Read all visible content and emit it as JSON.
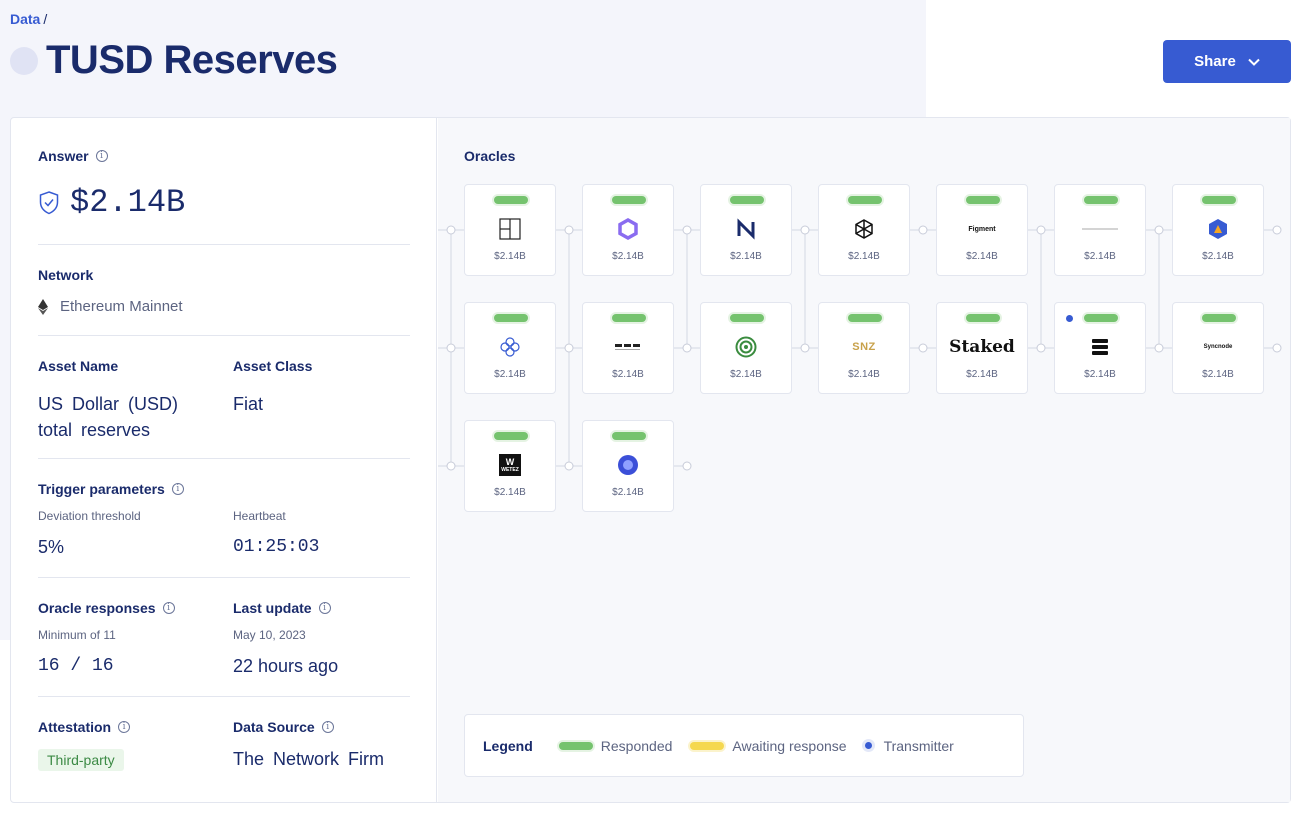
{
  "breadcrumb": {
    "link": "Data",
    "separator": "/"
  },
  "title": "TUSD Reserves",
  "share_label": "Share",
  "answer": {
    "label": "Answer",
    "value": "$2.14B"
  },
  "network": {
    "label": "Network",
    "value": "Ethereum Mainnet"
  },
  "asset": {
    "name_label": "Asset Name",
    "name_value": "US Dollar (USD) total reserves",
    "class_label": "Asset Class",
    "class_value": "Fiat"
  },
  "trigger": {
    "label": "Trigger parameters",
    "deviation_label": "Deviation threshold",
    "deviation_value": "5%",
    "heartbeat_label": "Heartbeat",
    "heartbeat_value": "01:25:03"
  },
  "responses": {
    "label": "Oracle responses",
    "sub": "Minimum of 11",
    "value": "16 / 16",
    "update_label": "Last update",
    "update_sub": "May 10, 2023",
    "update_value": "22 hours ago"
  },
  "attestation": {
    "label": "Attestation",
    "value": "Third-party",
    "source_label": "Data Source",
    "source_value": "The Network Firm"
  },
  "oracles": {
    "title": "Oracles",
    "nodes": [
      {
        "logo": "grid-logo-icon",
        "amount": "$2.14B",
        "status": "responded",
        "transmitter": false
      },
      {
        "logo": "hexagon-gradient-logo-icon",
        "amount": "$2.14B",
        "status": "responded",
        "transmitter": false
      },
      {
        "logo": "n-stripes-logo-icon",
        "amount": "$2.14B",
        "status": "responded",
        "transmitter": false
      },
      {
        "logo": "geometric-hexagon-logo-icon",
        "amount": "$2.14B",
        "status": "responded",
        "transmitter": false,
        "logo_text": ""
      },
      {
        "logo": "figment-logo",
        "amount": "$2.14B",
        "status": "responded",
        "transmitter": false,
        "logo_text": "Figment"
      },
      {
        "logo": "thin-line-logo-icon",
        "amount": "$2.14B",
        "status": "responded",
        "transmitter": false
      },
      {
        "logo": "blue-hexagon-logo-icon",
        "amount": "$2.14B",
        "status": "responded",
        "transmitter": false
      },
      {
        "logo": "flower-logo-icon",
        "amount": "$2.14B",
        "status": "responded",
        "transmitter": false
      },
      {
        "logo": "dotted-logo-icon",
        "amount": "$2.14B",
        "status": "responded",
        "transmitter": false
      },
      {
        "logo": "green-target-logo-icon",
        "amount": "$2.14B",
        "status": "responded",
        "transmitter": false
      },
      {
        "logo": "snz-logo",
        "amount": "$2.14B",
        "status": "responded",
        "transmitter": false,
        "logo_text": "SNZ"
      },
      {
        "logo": "staked-logo",
        "amount": "$2.14B",
        "status": "responded",
        "transmitter": false,
        "logo_text": "Staked"
      },
      {
        "logo": "stack-logo-icon",
        "amount": "$2.14B",
        "status": "responded",
        "transmitter": true
      },
      {
        "logo": "syncnode-logo",
        "amount": "$2.14B",
        "status": "responded",
        "transmitter": false,
        "logo_text": "Syncnode"
      },
      {
        "logo": "wetez-logo",
        "amount": "$2.14B",
        "status": "responded",
        "transmitter": false,
        "logo_text": "WETEZ"
      },
      {
        "logo": "blue-circle-logo-icon",
        "amount": "$2.14B",
        "status": "responded",
        "transmitter": false
      }
    ]
  },
  "legend": {
    "title": "Legend",
    "responded": "Responded",
    "awaiting": "Awaiting response",
    "transmitter": "Transmitter"
  },
  "colors": {
    "accent": "#375bd2",
    "responded": "#75c36e",
    "awaiting": "#f5d84f",
    "navy": "#1a2b6b"
  }
}
